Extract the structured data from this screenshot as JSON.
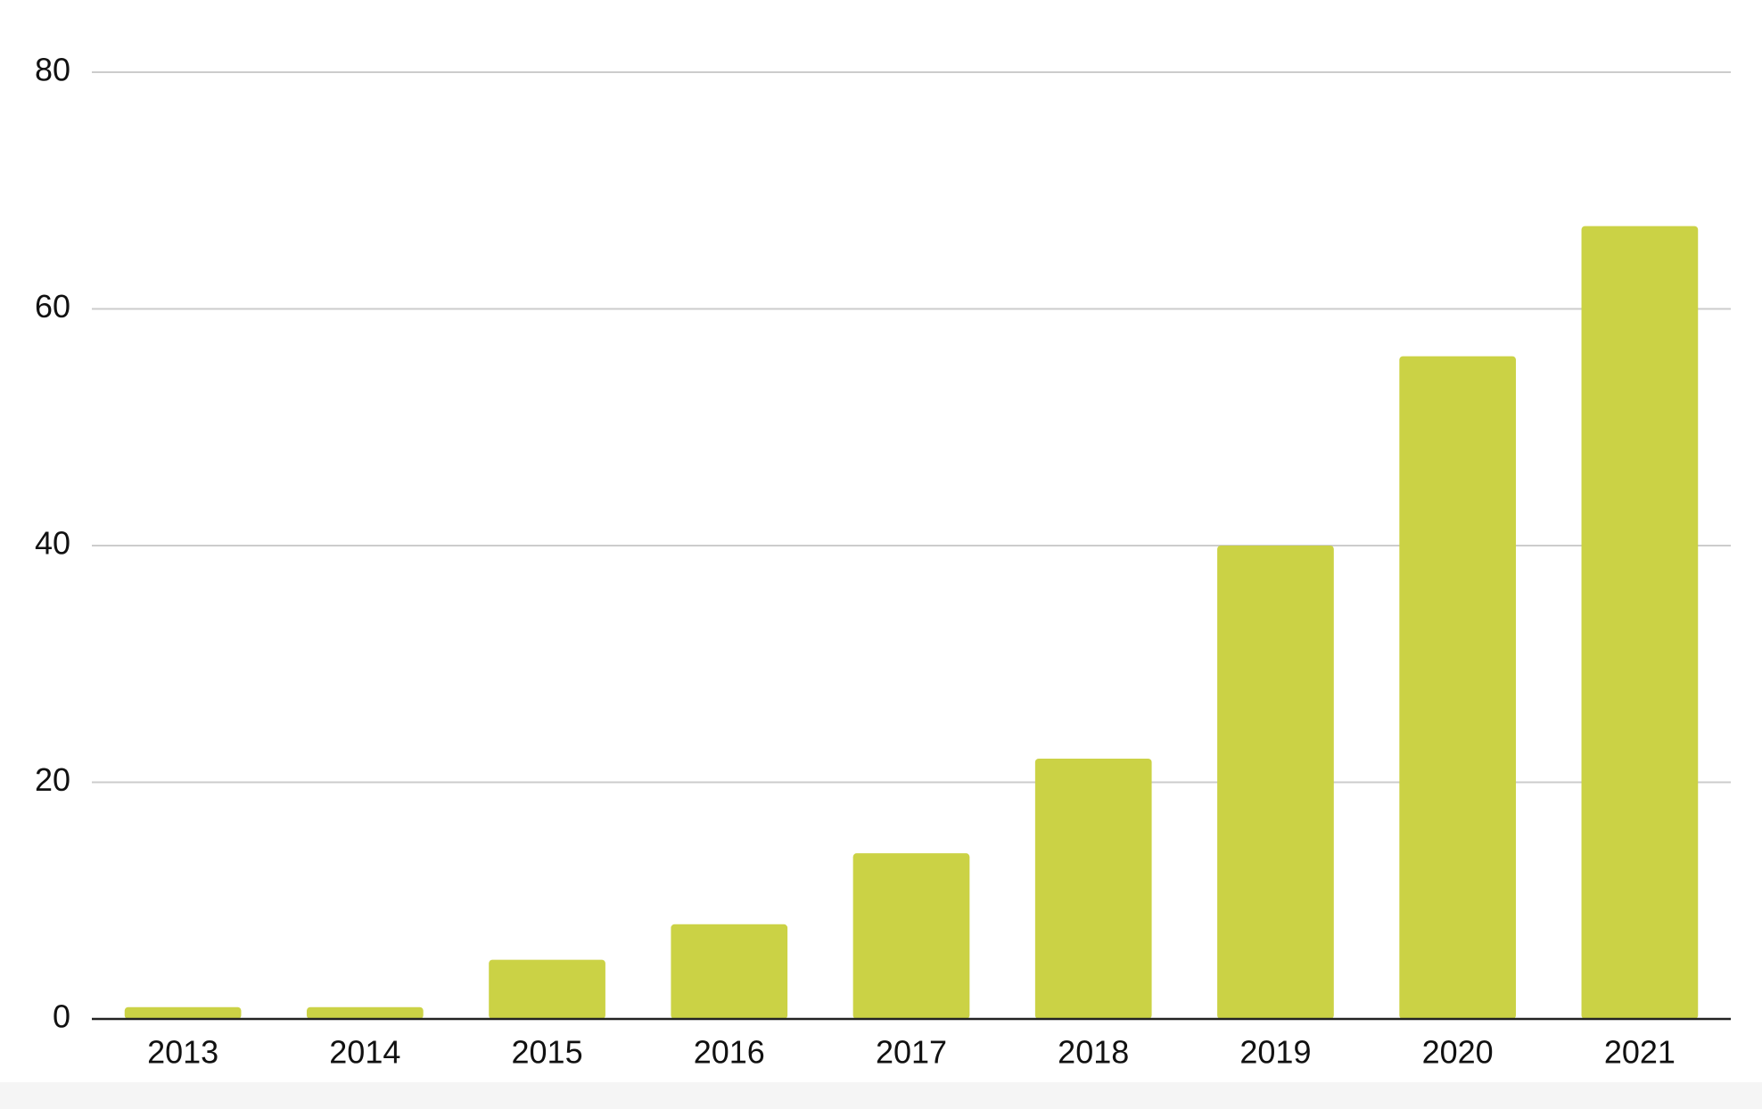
{
  "chart_data": {
    "type": "bar",
    "categories": [
      "2013",
      "2014",
      "2015",
      "2016",
      "2017",
      "2018",
      "2019",
      "2020",
      "2021"
    ],
    "values": [
      1,
      1,
      5,
      8,
      14,
      22,
      40,
      56,
      67
    ],
    "color": "#cbd245",
    "ylim": [
      0,
      80
    ],
    "yticks": [
      0,
      20,
      40,
      60,
      80
    ],
    "grid": true
  }
}
